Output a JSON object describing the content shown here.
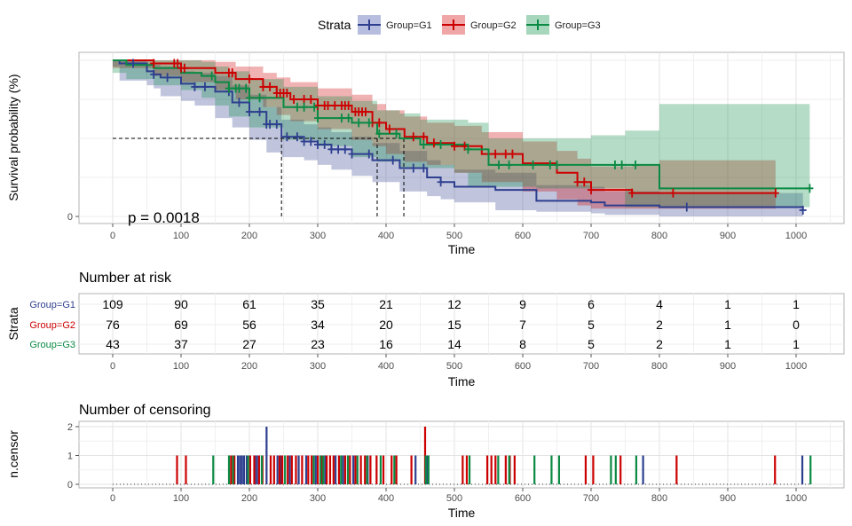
{
  "legend": {
    "title": "Strata",
    "items": [
      {
        "label": "Group=G1",
        "color": "#2E3F8F",
        "fill": "#B7BDDE"
      },
      {
        "label": "Group=G2",
        "color": "#CC0000",
        "fill": "#F0A6A6"
      },
      {
        "label": "Group=G3",
        "color": "#0A8A43",
        "fill": "#A6D6BC"
      }
    ]
  },
  "survival": {
    "ylabel": "Survival probability (%)",
    "xlabel": "Time",
    "pvalue": "p = 0.0018",
    "yticks": [
      "0"
    ],
    "xticks": [
      "0",
      "100",
      "200",
      "300",
      "400",
      "500",
      "600",
      "700",
      "800",
      "900",
      "1000"
    ],
    "median_lines": {
      "y": 0.5,
      "x": [
        247,
        387,
        426
      ]
    }
  },
  "chart_data": [
    {
      "type": "line",
      "title": "",
      "xlabel": "Time",
      "ylabel": "Survival probability (%)",
      "xlim": [
        -45,
        1045
      ],
      "ylim": [
        0,
        1
      ],
      "annotations": [
        "p = 0.0018"
      ],
      "series": [
        {
          "name": "Group=G1",
          "x": [
            0,
            10,
            50,
            60,
            70,
            100,
            120,
            150,
            175,
            200,
            225,
            247,
            280,
            300,
            320,
            350,
            380,
            420,
            460,
            480,
            500,
            560,
            620,
            700,
            720,
            800,
            1010
          ],
          "y": [
            1.0,
            0.98,
            0.93,
            0.91,
            0.89,
            0.85,
            0.83,
            0.8,
            0.73,
            0.67,
            0.59,
            0.51,
            0.48,
            0.46,
            0.43,
            0.4,
            0.36,
            0.31,
            0.25,
            0.22,
            0.19,
            0.17,
            0.1,
            0.09,
            0.07,
            0.06,
            0.04
          ],
          "lower": [
            1.0,
            0.96,
            0.87,
            0.84,
            0.82,
            0.77,
            0.74,
            0.71,
            0.63,
            0.57,
            0.49,
            0.41,
            0.38,
            0.36,
            0.33,
            0.3,
            0.26,
            0.22,
            0.16,
            0.13,
            0.11,
            0.09,
            0.04,
            0.03,
            0.02,
            0.01,
            0.0
          ],
          "upper": [
            1.0,
            1.0,
            0.98,
            0.97,
            0.96,
            0.93,
            0.92,
            0.9,
            0.84,
            0.78,
            0.7,
            0.62,
            0.59,
            0.57,
            0.54,
            0.51,
            0.47,
            0.42,
            0.36,
            0.33,
            0.3,
            0.28,
            0.2,
            0.19,
            0.16,
            0.15,
            0.13
          ]
        },
        {
          "name": "Group=G2",
          "x": [
            0,
            60,
            100,
            150,
            180,
            220,
            240,
            260,
            300,
            350,
            380,
            400,
            427,
            460,
            500,
            540,
            600,
            650,
            680,
            700,
            760,
            800,
            970
          ],
          "y": [
            1.0,
            0.98,
            0.95,
            0.92,
            0.88,
            0.83,
            0.79,
            0.75,
            0.71,
            0.67,
            0.6,
            0.56,
            0.51,
            0.47,
            0.45,
            0.4,
            0.34,
            0.28,
            0.22,
            0.17,
            0.15,
            0.15,
            0.15
          ],
          "lower": [
            1.0,
            0.95,
            0.9,
            0.86,
            0.81,
            0.75,
            0.7,
            0.65,
            0.61,
            0.56,
            0.49,
            0.45,
            0.4,
            0.35,
            0.33,
            0.28,
            0.22,
            0.16,
            0.11,
            0.07,
            0.05,
            0.05,
            0.05
          ],
          "upper": [
            1.0,
            1.0,
            1.0,
            0.99,
            0.96,
            0.92,
            0.89,
            0.86,
            0.82,
            0.78,
            0.72,
            0.68,
            0.64,
            0.6,
            0.58,
            0.54,
            0.48,
            0.42,
            0.37,
            0.32,
            0.33,
            0.36,
            0.36
          ]
        },
        {
          "name": "Group=G3",
          "x": [
            0,
            20,
            60,
            100,
            130,
            150,
            170,
            200,
            250,
            300,
            350,
            387,
            420,
            450,
            500,
            520,
            550,
            620,
            700,
            750,
            800,
            1020
          ],
          "y": [
            1.0,
            0.97,
            0.95,
            0.92,
            0.9,
            0.86,
            0.82,
            0.76,
            0.7,
            0.63,
            0.6,
            0.53,
            0.5,
            0.46,
            0.46,
            0.43,
            0.33,
            0.33,
            0.33,
            0.33,
            0.18,
            0.18
          ],
          "lower": [
            1.0,
            0.92,
            0.88,
            0.84,
            0.81,
            0.76,
            0.71,
            0.64,
            0.57,
            0.49,
            0.45,
            0.38,
            0.35,
            0.31,
            0.31,
            0.28,
            0.19,
            0.19,
            0.18,
            0.18,
            0.06,
            0.06
          ],
          "upper": [
            1.0,
            1.0,
            1.0,
            1.0,
            0.99,
            0.96,
            0.93,
            0.88,
            0.83,
            0.77,
            0.74,
            0.68,
            0.66,
            0.62,
            0.62,
            0.6,
            0.5,
            0.5,
            0.52,
            0.55,
            0.72,
            0.72
          ]
        }
      ],
      "censor_marks": [
        {
          "name": "Group=G1",
          "x": [
            30,
            60,
            80,
            120,
            135,
            170,
            185,
            200,
            215,
            225,
            230,
            240,
            255,
            270,
            280,
            290,
            300,
            310,
            320,
            330,
            340,
            350,
            375,
            410,
            440,
            455,
            480,
            840,
            1010
          ]
        },
        {
          "name": "Group=G2",
          "x": [
            60,
            90,
            95,
            100,
            105,
            170,
            175,
            200,
            220,
            230,
            240,
            245,
            250,
            255,
            265,
            280,
            290,
            300,
            310,
            315,
            325,
            335,
            340,
            345,
            355,
            360,
            365,
            370,
            380,
            390,
            405,
            440,
            455,
            470,
            500,
            515,
            560,
            575,
            585,
            680,
            690,
            700,
            760,
            820,
            970
          ]
        },
        {
          "name": "Group=G3",
          "x": [
            145,
            170,
            180,
            185,
            195,
            200,
            215,
            270,
            280,
            295,
            300,
            335,
            345,
            360,
            375,
            390,
            415,
            455,
            480,
            520,
            565,
            580,
            615,
            640,
            650,
            735,
            745,
            765,
            1020
          ]
        }
      ]
    },
    {
      "type": "table",
      "title": "Number at risk",
      "xlabel": "Time",
      "ylabel": "Strata",
      "x": [
        0,
        100,
        200,
        300,
        400,
        500,
        600,
        700,
        800,
        900,
        1000
      ],
      "series": [
        {
          "name": "Group=G1",
          "values": [
            109,
            90,
            61,
            35,
            21,
            12,
            9,
            6,
            4,
            1,
            1
          ]
        },
        {
          "name": "Group=G2",
          "values": [
            76,
            69,
            56,
            34,
            20,
            15,
            7,
            5,
            2,
            1,
            0
          ]
        },
        {
          "name": "Group=G3",
          "values": [
            43,
            37,
            27,
            23,
            16,
            14,
            8,
            5,
            2,
            1,
            1
          ]
        }
      ]
    },
    {
      "type": "bar",
      "title": "Number of censoring",
      "xlabel": "Time",
      "ylabel": "n.censor",
      "ylim": [
        0,
        2
      ],
      "yticks": [
        "0",
        "1",
        "2"
      ],
      "series": [
        {
          "name": "Group=G1",
          "x": [
            183,
            186,
            189,
            192,
            196,
            208,
            211,
            225,
            241,
            246,
            259,
            272,
            283,
            297,
            311,
            326,
            337,
            352,
            373,
            443,
            460,
            776,
            1009
          ],
          "values": [
            1,
            1,
            1,
            1,
            1,
            1,
            1,
            2,
            1,
            1,
            1,
            1,
            1,
            1,
            1,
            1,
            1,
            1,
            1,
            1,
            1,
            1,
            1
          ]
        },
        {
          "name": "Group=G2",
          "x": [
            94,
            107,
            173,
            178,
            201,
            207,
            214,
            219,
            231,
            236,
            244,
            248,
            256,
            262,
            268,
            277,
            286,
            291,
            300,
            306,
            313,
            318,
            323,
            331,
            340,
            347,
            355,
            363,
            369,
            377,
            386,
            396,
            408,
            415,
            437,
            457,
            512,
            518,
            548,
            554,
            560,
            575,
            581,
            588,
            692,
            703,
            743,
            825,
            969
          ],
          "values": [
            1,
            1,
            1,
            1,
            1,
            1,
            1,
            1,
            1,
            1,
            1,
            1,
            1,
            1,
            1,
            1,
            1,
            1,
            1,
            1,
            1,
            1,
            1,
            1,
            1,
            1,
            1,
            1,
            1,
            1,
            1,
            1,
            1,
            1,
            1,
            2,
            1,
            1,
            1,
            1,
            1,
            1,
            1,
            1,
            1,
            1,
            1,
            1,
            1
          ]
        },
        {
          "name": "Group=G3",
          "x": [
            147,
            170,
            176,
            198,
            218,
            252,
            294,
            304,
            308,
            334,
            344,
            358,
            372,
            392,
            412,
            458,
            462,
            522,
            564,
            580,
            617,
            642,
            653,
            729,
            736,
            766,
            1021
          ],
          "values": [
            1,
            1,
            1,
            1,
            1,
            1,
            1,
            1,
            1,
            1,
            1,
            1,
            1,
            1,
            1,
            1,
            1,
            1,
            1,
            1,
            1,
            1,
            1,
            1,
            1,
            1,
            1
          ]
        }
      ]
    }
  ]
}
